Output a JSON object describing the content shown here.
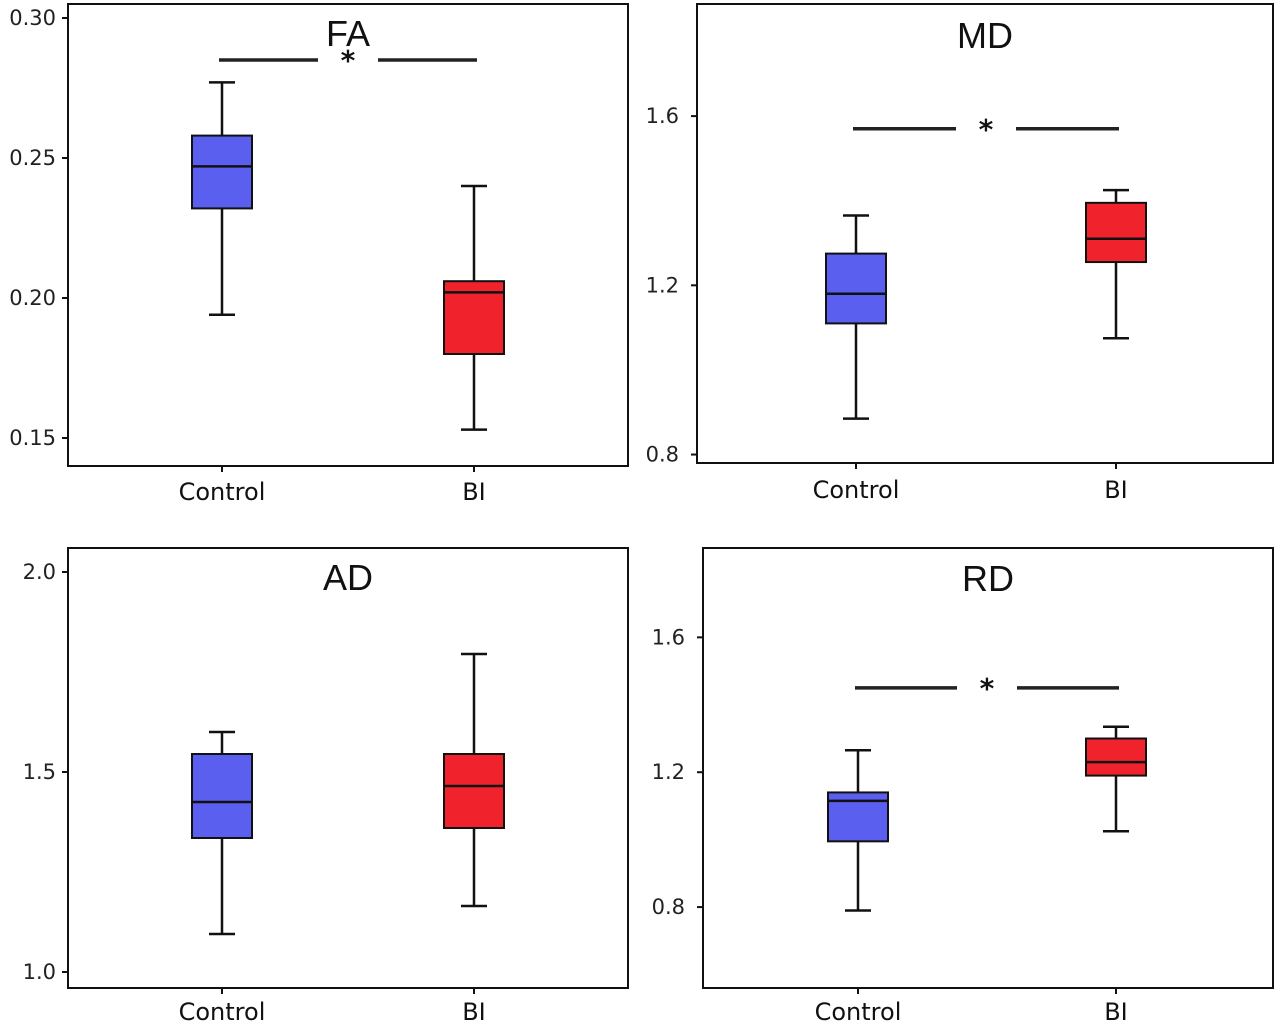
{
  "colors": {
    "control": "#5b5ff0",
    "bi": "#f0232d",
    "stroke": "#111111"
  },
  "chart_data": [
    {
      "type": "box",
      "title": "FA",
      "categories": [
        "Control",
        "BI"
      ],
      "ylim": [
        0.14,
        0.305
      ],
      "yticks": [
        "0.15",
        "0.20",
        "0.25",
        "0.30"
      ],
      "series": [
        {
          "category": "Control",
          "whisker_low": 0.194,
          "q1": 0.232,
          "median": 0.247,
          "q3": 0.258,
          "whisker_high": 0.277
        },
        {
          "category": "BI",
          "whisker_low": 0.153,
          "q1": 0.18,
          "median": 0.202,
          "q3": 0.206,
          "whisker_high": 0.24
        }
      ],
      "significance": {
        "label": "*",
        "y": 0.285
      }
    },
    {
      "type": "box",
      "title": "MD",
      "categories": [
        "Control",
        "BI"
      ],
      "ylim": [
        0.78,
        1.865
      ],
      "yticks": [
        "0.8",
        "1.2",
        "1.6"
      ],
      "series": [
        {
          "category": "Control",
          "whisker_low": 0.885,
          "q1": 1.11,
          "median": 1.18,
          "q3": 1.275,
          "whisker_high": 1.365
        },
        {
          "category": "BI",
          "whisker_low": 1.075,
          "q1": 1.255,
          "median": 1.31,
          "q3": 1.395,
          "whisker_high": 1.425
        }
      ],
      "significance": {
        "label": "*",
        "y": 1.57
      }
    },
    {
      "type": "box",
      "title": "AD",
      "categories": [
        "Control",
        "BI"
      ],
      "ylim": [
        0.96,
        2.06
      ],
      "yticks": [
        "1.0",
        "1.5",
        "2.0"
      ],
      "series": [
        {
          "category": "Control",
          "whisker_low": 1.095,
          "q1": 1.335,
          "median": 1.425,
          "q3": 1.545,
          "whisker_high": 1.6
        },
        {
          "category": "BI",
          "whisker_low": 1.165,
          "q1": 1.36,
          "median": 1.465,
          "q3": 1.545,
          "whisker_high": 1.795
        }
      ],
      "significance": null
    },
    {
      "type": "box",
      "title": "RD",
      "categories": [
        "Control",
        "BI"
      ],
      "ylim": [
        0.56,
        1.865
      ],
      "yticks": [
        "0.8",
        "1.2",
        "1.6"
      ],
      "series": [
        {
          "category": "Control",
          "whisker_low": 0.79,
          "q1": 0.995,
          "median": 1.115,
          "q3": 1.14,
          "whisker_high": 1.265
        },
        {
          "category": "BI",
          "whisker_low": 1.025,
          "q1": 1.19,
          "median": 1.23,
          "q3": 1.3,
          "whisker_high": 1.335
        }
      ],
      "significance": {
        "label": "*",
        "y": 1.45
      }
    }
  ]
}
